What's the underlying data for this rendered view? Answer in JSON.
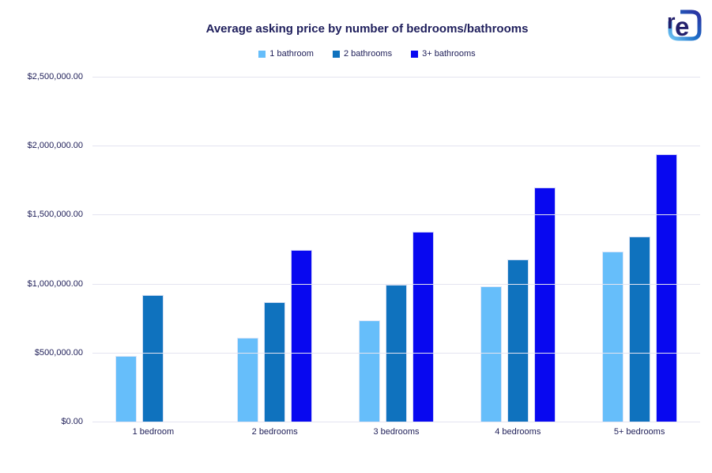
{
  "logo": {
    "letters": "re"
  },
  "chart_data": {
    "type": "bar",
    "title": "Average asking price by number of bedrooms/bathrooms",
    "categories": [
      "1 bedroom",
      "2 bedrooms",
      "3 bedrooms",
      "4 bedrooms",
      "5+ bedrooms"
    ],
    "series": [
      {
        "name": "1 bathroom",
        "color": "#66BEFA",
        "values": [
          476000,
          609000,
          732000,
          979000,
          1231000
        ]
      },
      {
        "name": "2 bathrooms",
        "color": "#0F72BE",
        "values": [
          915000,
          864000,
          992000,
          1177000,
          1342000
        ]
      },
      {
        "name": "3+ bathrooms",
        "color": "#0808F0",
        "values": [
          null,
          1244000,
          1378000,
          1695000,
          1938000
        ]
      }
    ],
    "xlabel": "",
    "ylabel": "",
    "ylim": [
      0,
      2500000
    ],
    "ytick_step": 500000,
    "ytick_labels": [
      "$0.00",
      "$500,000.00",
      "$1,000,000.00",
      "$1,500,000.00",
      "$2,000,000.00",
      "$2,500,000.00"
    ],
    "grid": true,
    "legend_position": "top"
  },
  "colors": {
    "text": "#21215A",
    "title": "#1F1F5C",
    "gridline": "#E4E4F0",
    "background": "#FFFFFF",
    "logo_navy": "#221F6B",
    "logo_gradient_start": "#2B2F9F",
    "logo_gradient_mid": "#1D6FC9",
    "logo_gradient_end": "#70C6F4"
  }
}
